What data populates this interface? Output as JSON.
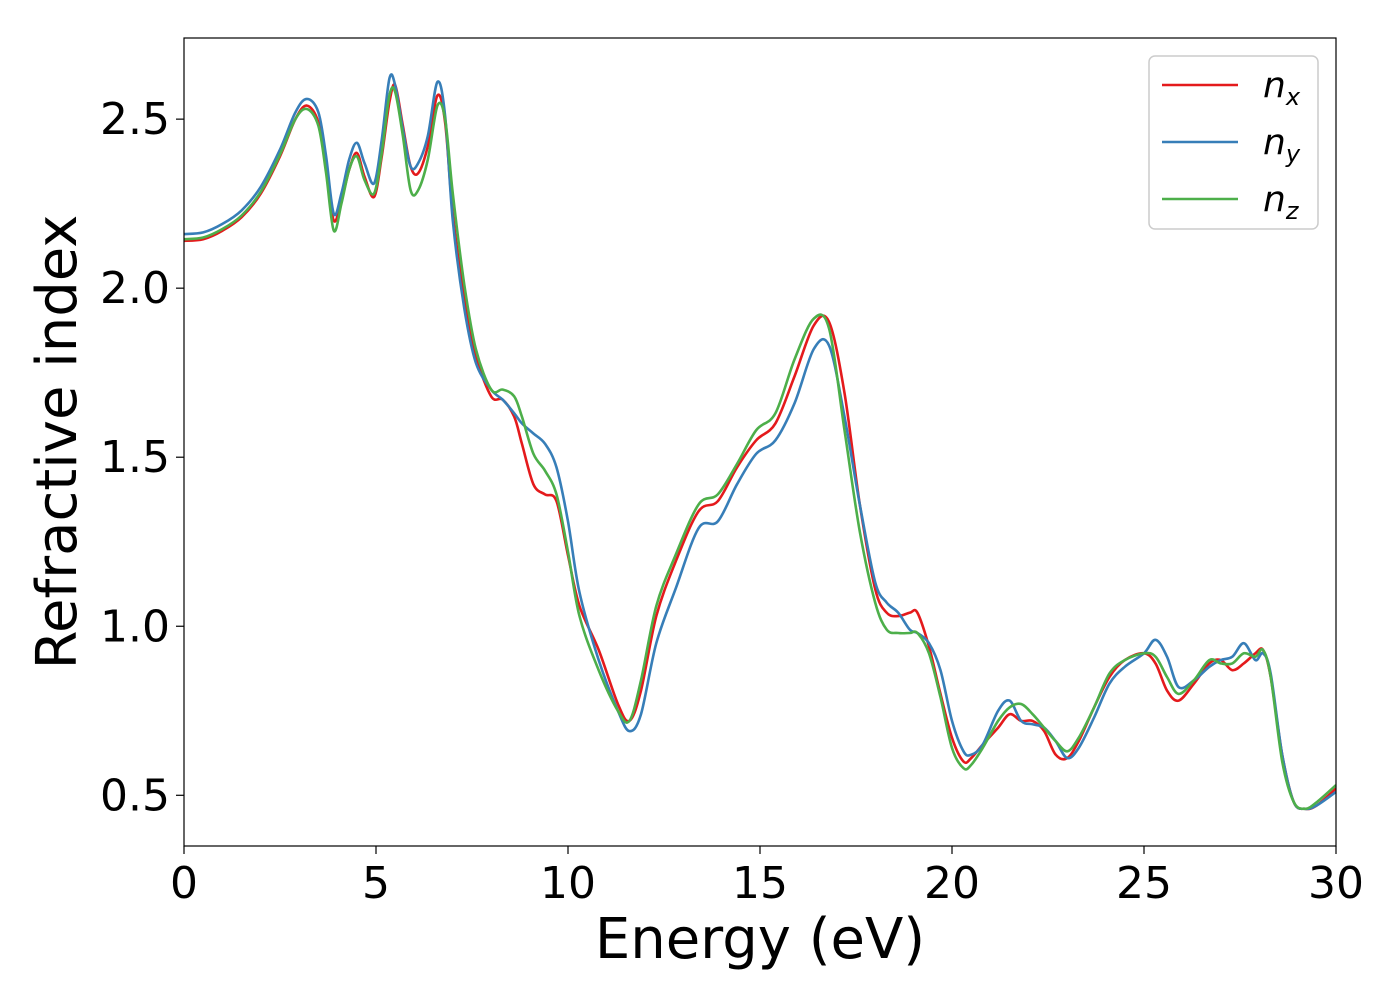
{
  "chart_data": {
    "type": "line",
    "title": "",
    "xlabel": "Energy (eV)",
    "ylabel": "Refractive index",
    "xlim": [
      0,
      30
    ],
    "ylim": [
      0.35,
      2.74
    ],
    "xticks": [
      0,
      5,
      10,
      15,
      20,
      25,
      30
    ],
    "xtick_labels": [
      "0",
      "5",
      "10",
      "15",
      "20",
      "25",
      "30"
    ],
    "yticks": [
      0.5,
      1.0,
      1.5,
      2.0,
      2.5
    ],
    "ytick_labels": [
      "0.5",
      "1.0",
      "1.5",
      "2.0",
      "2.5"
    ],
    "grid": false,
    "legend_position": "top-right",
    "series": [
      {
        "name": "n",
        "subscript": "x",
        "color": "#e41a1c",
        "x": [
          0,
          0.5,
          1,
          1.5,
          2,
          2.5,
          2.9,
          3.2,
          3.5,
          3.7,
          3.9,
          4.1,
          4.3,
          4.5,
          4.7,
          4.95,
          5.15,
          5.35,
          5.5,
          5.7,
          5.9,
          6.1,
          6.35,
          6.6,
          6.8,
          7.0,
          7.3,
          7.6,
          8.0,
          8.3,
          8.6,
          8.8,
          9.1,
          9.4,
          9.7,
          10.0,
          10.3,
          10.8,
          11.3,
          11.6,
          11.9,
          12.3,
          12.8,
          13.4,
          13.9,
          14.4,
          14.9,
          15.4,
          15.9,
          16.4,
          16.8,
          17.2,
          17.6,
          18.0,
          18.3,
          18.6,
          18.9,
          19.1,
          19.4,
          19.7,
          20.0,
          20.3,
          20.5,
          20.8,
          21.2,
          21.5,
          21.8,
          22.1,
          22.4,
          22.7,
          23.0,
          23.3,
          23.7,
          24.1,
          24.5,
          25.0,
          25.3,
          25.6,
          25.9,
          26.3,
          26.7,
          27.0,
          27.3,
          27.6,
          27.9,
          28.1,
          28.3,
          28.6,
          28.9,
          29.2,
          29.5,
          30.0
        ],
        "y": [
          2.14,
          2.145,
          2.17,
          2.21,
          2.28,
          2.39,
          2.5,
          2.54,
          2.49,
          2.35,
          2.2,
          2.26,
          2.35,
          2.4,
          2.33,
          2.27,
          2.39,
          2.55,
          2.6,
          2.48,
          2.36,
          2.34,
          2.42,
          2.57,
          2.49,
          2.22,
          1.97,
          1.8,
          1.68,
          1.67,
          1.62,
          1.54,
          1.42,
          1.39,
          1.37,
          1.21,
          1.06,
          0.93,
          0.77,
          0.72,
          0.81,
          1.03,
          1.19,
          1.34,
          1.37,
          1.47,
          1.55,
          1.6,
          1.74,
          1.89,
          1.9,
          1.69,
          1.36,
          1.11,
          1.04,
          1.03,
          1.04,
          1.04,
          0.94,
          0.8,
          0.67,
          0.6,
          0.61,
          0.65,
          0.7,
          0.74,
          0.72,
          0.72,
          0.69,
          0.62,
          0.61,
          0.66,
          0.76,
          0.85,
          0.9,
          0.92,
          0.89,
          0.81,
          0.78,
          0.83,
          0.89,
          0.9,
          0.87,
          0.89,
          0.92,
          0.93,
          0.85,
          0.62,
          0.48,
          0.46,
          0.47,
          0.52
        ]
      },
      {
        "name": "n",
        "subscript": "y",
        "color": "#377eb8",
        "x": [
          0,
          0.5,
          1,
          1.5,
          2,
          2.5,
          2.9,
          3.2,
          3.5,
          3.7,
          3.9,
          4.1,
          4.3,
          4.5,
          4.7,
          4.95,
          5.15,
          5.35,
          5.5,
          5.7,
          5.9,
          6.1,
          6.35,
          6.6,
          6.8,
          7.0,
          7.3,
          7.6,
          8.0,
          8.3,
          8.6,
          8.8,
          9.1,
          9.4,
          9.7,
          10.0,
          10.3,
          10.8,
          11.3,
          11.6,
          11.9,
          12.3,
          12.8,
          13.4,
          13.9,
          14.4,
          14.9,
          15.4,
          15.9,
          16.4,
          16.8,
          17.2,
          17.6,
          18.0,
          18.3,
          18.6,
          18.9,
          19.1,
          19.4,
          19.7,
          20.0,
          20.3,
          20.5,
          20.8,
          21.2,
          21.5,
          21.8,
          22.1,
          22.4,
          22.7,
          23.0,
          23.3,
          23.7,
          24.1,
          24.5,
          25.0,
          25.3,
          25.6,
          25.9,
          26.3,
          26.7,
          27.0,
          27.3,
          27.6,
          27.9,
          28.1,
          28.3,
          28.6,
          28.9,
          29.2,
          29.5,
          30.0
        ],
        "y": [
          2.16,
          2.165,
          2.19,
          2.23,
          2.3,
          2.41,
          2.52,
          2.56,
          2.52,
          2.39,
          2.22,
          2.28,
          2.38,
          2.43,
          2.37,
          2.31,
          2.44,
          2.62,
          2.6,
          2.47,
          2.36,
          2.37,
          2.45,
          2.61,
          2.51,
          2.2,
          1.94,
          1.78,
          1.7,
          1.67,
          1.63,
          1.6,
          1.57,
          1.54,
          1.47,
          1.31,
          1.1,
          0.9,
          0.75,
          0.69,
          0.74,
          0.95,
          1.11,
          1.29,
          1.31,
          1.42,
          1.51,
          1.55,
          1.66,
          1.82,
          1.83,
          1.62,
          1.36,
          1.13,
          1.07,
          1.04,
          0.99,
          0.98,
          0.95,
          0.87,
          0.72,
          0.63,
          0.62,
          0.65,
          0.75,
          0.78,
          0.72,
          0.71,
          0.7,
          0.66,
          0.61,
          0.64,
          0.73,
          0.83,
          0.88,
          0.92,
          0.96,
          0.91,
          0.82,
          0.84,
          0.88,
          0.9,
          0.91,
          0.95,
          0.9,
          0.92,
          0.86,
          0.62,
          0.48,
          0.46,
          0.47,
          0.51
        ]
      },
      {
        "name": "n",
        "subscript": "z",
        "color": "#4daf4a",
        "x": [
          0,
          0.5,
          1,
          1.5,
          2,
          2.5,
          2.9,
          3.2,
          3.5,
          3.7,
          3.9,
          4.1,
          4.3,
          4.5,
          4.7,
          4.95,
          5.15,
          5.35,
          5.5,
          5.7,
          5.9,
          6.1,
          6.35,
          6.6,
          6.8,
          7.0,
          7.3,
          7.6,
          8.0,
          8.3,
          8.6,
          8.8,
          9.1,
          9.4,
          9.7,
          10.0,
          10.3,
          10.8,
          11.3,
          11.6,
          11.9,
          12.3,
          12.8,
          13.4,
          13.9,
          14.4,
          14.9,
          15.4,
          15.9,
          16.4,
          16.8,
          17.2,
          17.6,
          18.0,
          18.3,
          18.6,
          18.9,
          19.1,
          19.4,
          19.7,
          20.0,
          20.3,
          20.5,
          20.8,
          21.2,
          21.5,
          21.8,
          22.1,
          22.4,
          22.7,
          23.0,
          23.3,
          23.7,
          24.1,
          24.5,
          25.0,
          25.3,
          25.6,
          25.9,
          26.3,
          26.7,
          27.0,
          27.3,
          27.6,
          27.9,
          28.1,
          28.3,
          28.6,
          28.9,
          29.2,
          29.5,
          30.0
        ],
        "y": [
          2.145,
          2.15,
          2.175,
          2.215,
          2.285,
          2.395,
          2.5,
          2.53,
          2.48,
          2.34,
          2.17,
          2.25,
          2.35,
          2.39,
          2.32,
          2.28,
          2.4,
          2.57,
          2.58,
          2.45,
          2.29,
          2.29,
          2.38,
          2.54,
          2.5,
          2.28,
          2.01,
          1.82,
          1.7,
          1.7,
          1.68,
          1.62,
          1.51,
          1.46,
          1.39,
          1.22,
          1.03,
          0.87,
          0.75,
          0.72,
          0.84,
          1.06,
          1.21,
          1.36,
          1.39,
          1.48,
          1.58,
          1.63,
          1.79,
          1.91,
          1.88,
          1.58,
          1.28,
          1.07,
          0.99,
          0.98,
          0.98,
          0.98,
          0.92,
          0.79,
          0.64,
          0.58,
          0.59,
          0.64,
          0.72,
          0.76,
          0.77,
          0.74,
          0.7,
          0.66,
          0.63,
          0.67,
          0.76,
          0.86,
          0.9,
          0.92,
          0.91,
          0.85,
          0.8,
          0.84,
          0.9,
          0.89,
          0.89,
          0.92,
          0.91,
          0.93,
          0.85,
          0.6,
          0.48,
          0.46,
          0.48,
          0.53
        ]
      }
    ]
  }
}
